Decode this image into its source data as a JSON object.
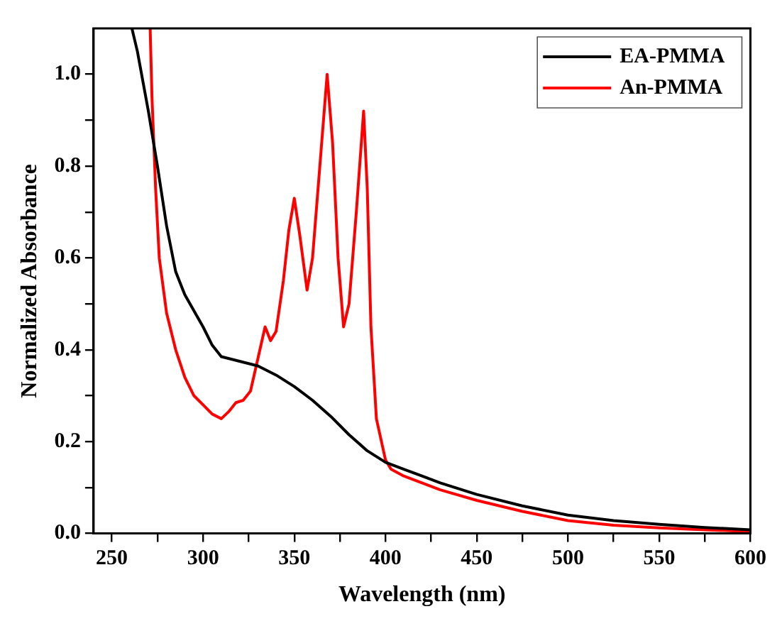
{
  "chart_data": {
    "type": "line",
    "xlabel": "Wavelength (nm)",
    "ylabel": "Normalized Absorbance",
    "xlim": [
      240,
      600
    ],
    "ylim": [
      0,
      1.1
    ],
    "xticks": [
      250,
      {
        "value": 275,
        "label": null
      },
      300,
      {
        "value": 325,
        "label": null
      },
      350,
      {
        "value": 375,
        "label": null
      },
      400,
      {
        "value": 425,
        "label": null
      },
      450,
      {
        "value": 475,
        "label": null
      },
      500,
      {
        "value": 525,
        "label": null
      },
      550,
      {
        "value": 575,
        "label": null
      },
      600
    ],
    "yticks": [
      {
        "value": 0,
        "label": "0.0"
      },
      {
        "value": 0.1,
        "label": null
      },
      0.2,
      {
        "value": 0.3,
        "label": null
      },
      0.4,
      {
        "value": 0.5,
        "label": null
      },
      0.6,
      {
        "value": 0.7,
        "label": null
      },
      0.8,
      {
        "value": 0.9,
        "label": null
      },
      {
        "value": 1,
        "label": "1.0"
      }
    ],
    "grid": false,
    "legend": "top right",
    "marker": "none",
    "line_style": "solid",
    "series": [
      {
        "name": "EA-PMMA",
        "color": "#000000",
        "x": [
          261,
          264,
          270,
          275,
          280,
          285,
          290,
          300,
          305,
          310,
          320,
          330,
          340,
          350,
          360,
          370,
          380,
          390,
          400,
          410,
          420,
          430,
          450,
          475,
          500,
          525,
          550,
          575,
          600
        ],
        "values": [
          1.1,
          1.05,
          0.92,
          0.8,
          0.67,
          0.57,
          0.52,
          0.45,
          0.41,
          0.385,
          0.375,
          0.365,
          0.345,
          0.32,
          0.29,
          0.255,
          0.215,
          0.18,
          0.155,
          0.14,
          0.125,
          0.11,
          0.085,
          0.06,
          0.04,
          0.028,
          0.02,
          0.013,
          0.008
        ]
      },
      {
        "name": "An-PMMA",
        "color": "#ff0000",
        "x": [
          271,
          272,
          274,
          276,
          280,
          285,
          290,
          295,
          300,
          305,
          310,
          314,
          318,
          322,
          326,
          330,
          334,
          337,
          340,
          344,
          347,
          350,
          353,
          357,
          360,
          364,
          368,
          371,
          374,
          377,
          380,
          384,
          388,
          390,
          392,
          395,
          400,
          403,
          410,
          420,
          430,
          450,
          475,
          500,
          525,
          550,
          575,
          600
        ],
        "values": [
          1.1,
          0.95,
          0.75,
          0.6,
          0.48,
          0.4,
          0.34,
          0.3,
          0.28,
          0.26,
          0.25,
          0.265,
          0.285,
          0.29,
          0.31,
          0.38,
          0.45,
          0.42,
          0.44,
          0.55,
          0.66,
          0.73,
          0.65,
          0.53,
          0.6,
          0.8,
          1.0,
          0.85,
          0.6,
          0.45,
          0.5,
          0.7,
          0.92,
          0.75,
          0.45,
          0.25,
          0.16,
          0.14,
          0.125,
          0.11,
          0.095,
          0.072,
          0.048,
          0.028,
          0.018,
          0.012,
          0.008,
          0.004
        ]
      }
    ]
  }
}
